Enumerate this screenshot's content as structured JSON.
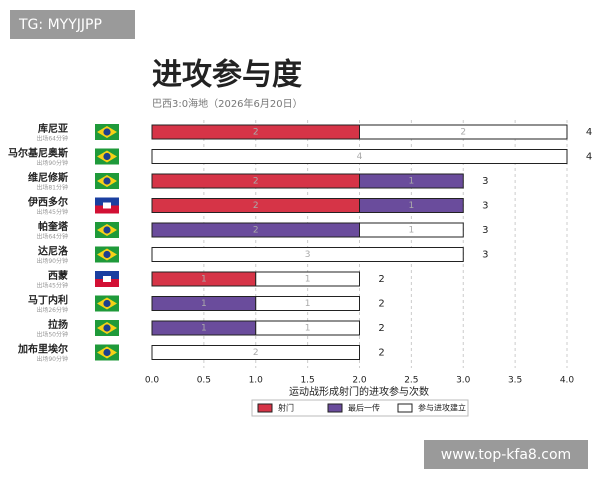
{
  "chart_data": {
    "type": "stacked-barh",
    "title": "进攻参与度",
    "subtitle": "巴西3:0海地（2026年6月20日）",
    "xlabel": "运动战形成射门的进攻参与次数",
    "watermarks": [
      "TG: MYYJJPP",
      "www.top-kfa8.com"
    ],
    "categories": [
      "库尼亚",
      "马尔基尼奥斯",
      "维尼修斯",
      "伊西多尔",
      "帕奎塔",
      "达尼洛",
      "西蒙",
      "马丁内利",
      "拉扬",
      "加布里埃尔"
    ],
    "minutes": [
      "出场64分钟",
      "出场90分钟",
      "出场81分钟",
      "出场45分钟",
      "出场64分钟",
      "出场90分钟",
      "出场45分钟",
      "出场26分钟",
      "出场50分钟",
      "出场90分钟"
    ],
    "flags": [
      "BR",
      "BR",
      "BR",
      "HT",
      "BR",
      "BR",
      "HT",
      "BR",
      "BR",
      "BR"
    ],
    "series": [
      {
        "name": "射门",
        "color": "#d63447",
        "values": [
          2,
          0,
          2,
          2,
          0,
          0,
          1,
          0,
          0,
          0
        ]
      },
      {
        "name": "最后一传",
        "color": "#6a4c9c",
        "values": [
          0,
          0,
          1,
          1,
          2,
          0,
          0,
          1,
          1,
          0
        ]
      },
      {
        "name": "参与进攻建立",
        "color": "#ffffff",
        "values": [
          2,
          4,
          0,
          0,
          1,
          3,
          1,
          1,
          1,
          2
        ]
      }
    ],
    "totals": [
      4,
      4,
      3,
      3,
      3,
      3,
      2,
      2,
      2,
      2
    ],
    "xlim": [
      0,
      4
    ],
    "xticks": [
      {
        "value": 0,
        "label": "0.0"
      },
      {
        "value": 0.5,
        "label": "0.5"
      },
      {
        "value": 1,
        "label": "1.0"
      },
      {
        "value": 1.5,
        "label": "1.5"
      },
      {
        "value": 2,
        "label": "2.0"
      },
      {
        "value": 2.5,
        "label": "2.5"
      },
      {
        "value": 3,
        "label": "3.0"
      },
      {
        "value": 3.5,
        "label": "3.5"
      },
      {
        "value": 4,
        "label": "4.0"
      }
    ],
    "grid": true
  }
}
